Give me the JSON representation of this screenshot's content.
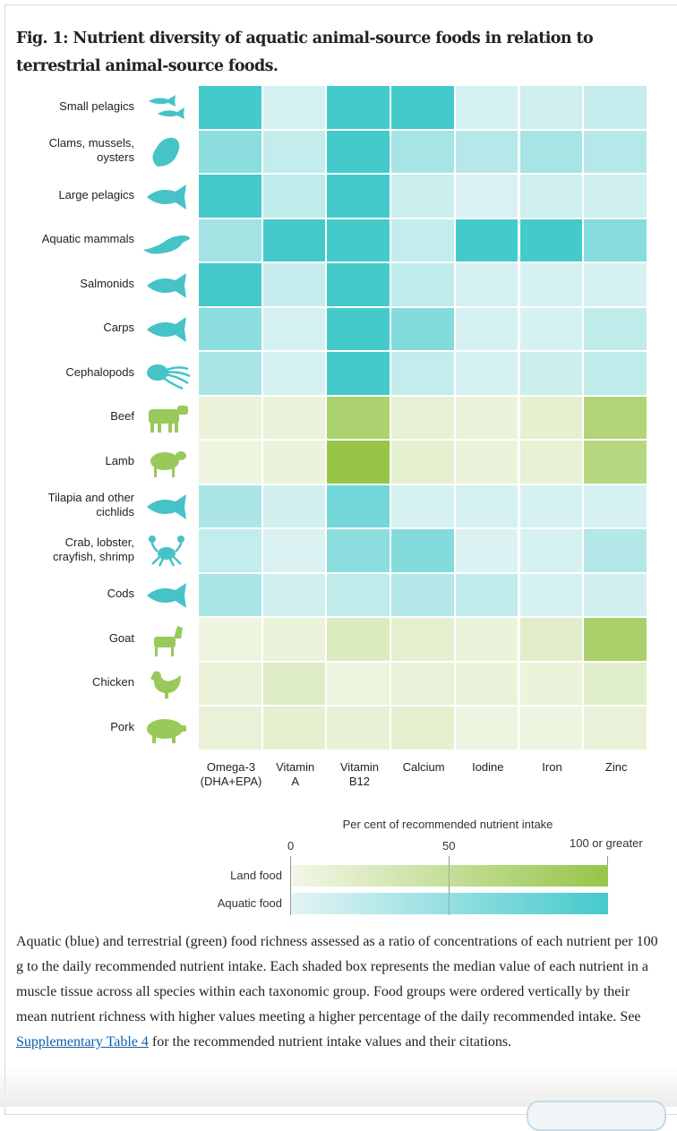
{
  "figure": {
    "title": "Fig. 1: Nutrient diversity of aquatic animal-source foods in relation to terrestrial animal-source foods.",
    "caption_before_link": "Aquatic (blue) and terrestrial (green) food richness assessed as a ratio of concentrations of each nutrient per 100 g to the daily recommended nutrient intake. Each shaded box represents the median value of each nutrient in a muscle tissue across all species within each taxonomic group. Food groups were ordered vertically by their mean nutrient richness with higher values meeting a higher percentage of the daily recommended intake. See ",
    "caption_link": "Supplementary Table 4",
    "caption_after_link": " for the recommended nutrient intake values and their citations."
  },
  "chart_data": {
    "type": "heatmap",
    "title": "Nutrient diversity of aquatic animal-source foods in relation to terrestrial animal-source foods",
    "columns": [
      {
        "line1": "Omega-3",
        "line2": "(DHA+EPA)"
      },
      {
        "line1": "Vitamin",
        "line2": "A"
      },
      {
        "line1": "Vitamin",
        "line2": "B12"
      },
      {
        "line1": "Calcium",
        "line2": ""
      },
      {
        "line1": "Iodine",
        "line2": ""
      },
      {
        "line1": "Iron",
        "line2": ""
      },
      {
        "line1": "Zinc",
        "line2": ""
      }
    ],
    "rows": [
      {
        "label": "Small pelagics",
        "type": "aquatic",
        "icon": "small-fish-icon",
        "values": [
          100,
          8,
          100,
          100,
          8,
          12,
          18
        ]
      },
      {
        "label": "Clams, mussels, oysters",
        "type": "aquatic",
        "icon": "clam-icon",
        "values": [
          55,
          20,
          100,
          38,
          28,
          38,
          28
        ]
      },
      {
        "label": "Large pelagics",
        "type": "aquatic",
        "icon": "tuna-icon",
        "values": [
          100,
          22,
          100,
          15,
          6,
          12,
          12
        ]
      },
      {
        "label": "Aquatic mammals",
        "type": "aquatic",
        "icon": "seal-icon",
        "values": [
          40,
          100,
          100,
          20,
          100,
          100,
          58
        ]
      },
      {
        "label": "Salmonids",
        "type": "aquatic",
        "icon": "salmon-icon",
        "values": [
          100,
          18,
          100,
          22,
          8,
          8,
          8
        ]
      },
      {
        "label": "Carps",
        "type": "aquatic",
        "icon": "carp-icon",
        "values": [
          55,
          8,
          100,
          60,
          8,
          8,
          22
        ]
      },
      {
        "label": "Cephalopods",
        "type": "aquatic",
        "icon": "octopus-icon",
        "values": [
          35,
          8,
          100,
          20,
          8,
          15,
          22
        ]
      },
      {
        "label": "Beef",
        "type": "land",
        "icon": "cow-icon",
        "values": [
          8,
          8,
          75,
          12,
          8,
          15,
          70
        ]
      },
      {
        "label": "Lamb",
        "type": "land",
        "icon": "sheep-icon",
        "values": [
          5,
          8,
          100,
          15,
          8,
          12,
          65
        ]
      },
      {
        "label": "Tilapia and other cichlids",
        "type": "aquatic",
        "icon": "tilapia-icon",
        "values": [
          35,
          10,
          70,
          8,
          8,
          8,
          8
        ]
      },
      {
        "label": "Crab, lobster, crayfish, shrimp",
        "type": "aquatic",
        "icon": "crab-icon",
        "values": [
          20,
          5,
          55,
          60,
          5,
          8,
          30
        ]
      },
      {
        "label": "Cods",
        "type": "aquatic",
        "icon": "cod-icon",
        "values": [
          35,
          12,
          22,
          30,
          22,
          8,
          10
        ]
      },
      {
        "label": "Goat",
        "type": "land",
        "icon": "goat-icon",
        "values": [
          5,
          8,
          25,
          15,
          8,
          20,
          78
        ]
      },
      {
        "label": "Chicken",
        "type": "land",
        "icon": "chicken-icon",
        "values": [
          10,
          22,
          5,
          10,
          8,
          8,
          18
        ]
      },
      {
        "label": "Pork",
        "type": "land",
        "icon": "pig-icon",
        "values": [
          10,
          15,
          12,
          15,
          5,
          5,
          10
        ]
      }
    ],
    "value_range": [
      0,
      100
    ],
    "legend": {
      "title": "Per cent of recommended nutrient intake",
      "ticks": [
        "0",
        "50",
        "100 or greater"
      ],
      "land_label": "Land food",
      "aquatic_label": "Aquatic food"
    },
    "colors": {
      "aquatic_low": "#e3f4f4",
      "aquatic_high": "#45cacc",
      "land_low": "#f2f7e8",
      "land_high": "#96c548",
      "icon_aquatic": "#45c3c7",
      "icon_land": "#98c95a"
    }
  }
}
